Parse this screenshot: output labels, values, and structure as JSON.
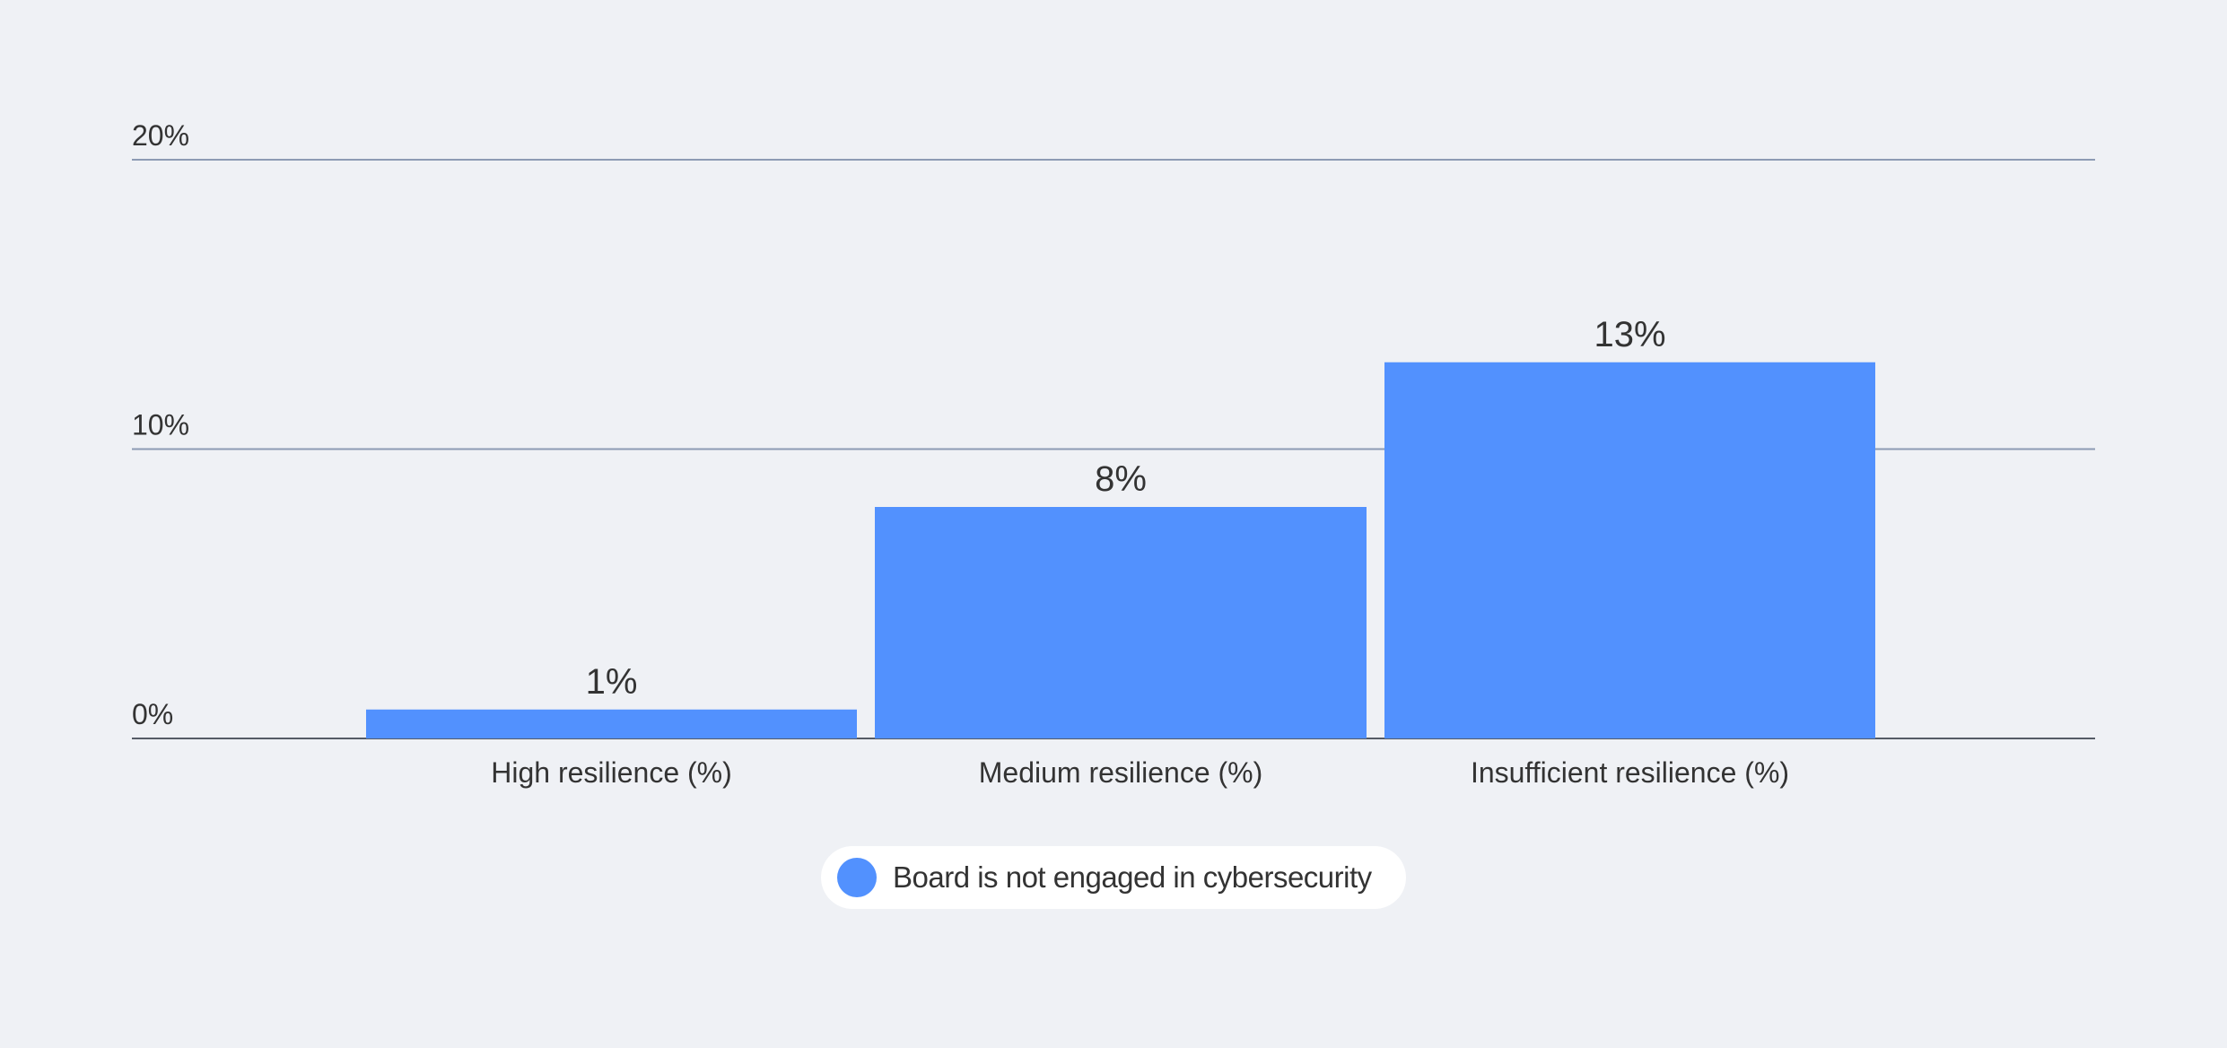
{
  "chart_data": {
    "type": "bar",
    "title": "",
    "xlabel": "",
    "ylabel": "",
    "categories": [
      "High resilience (%)",
      "Medium resilience (%)",
      "Insufficient resilience (%)"
    ],
    "series": [
      {
        "name": "Board is not engaged in cybersecurity",
        "values": [
          1,
          8,
          13
        ],
        "color": "#5291fe"
      }
    ],
    "value_labels": [
      "1%",
      "8%",
      "13%"
    ],
    "yticks": [
      0,
      10,
      20
    ],
    "ytick_labels": [
      "0%",
      "10%",
      "20%"
    ],
    "ylim": [
      0,
      20
    ],
    "grid": true,
    "legend_position": "bottom-center"
  }
}
